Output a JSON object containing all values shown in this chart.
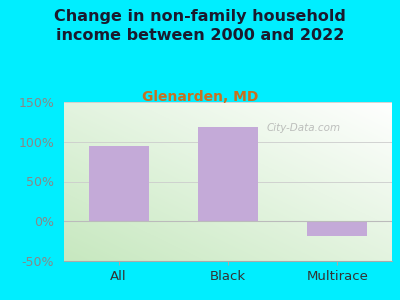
{
  "title": "Change in non-family household\nincome between 2000 and 2022",
  "subtitle": "Glenarden, MD",
  "categories": [
    "All",
    "Black",
    "Multirace"
  ],
  "values": [
    95,
    118,
    -18
  ],
  "bar_color": "#c4aad8",
  "title_color": "#1a1a2e",
  "subtitle_color": "#c87020",
  "title_fontsize": 11.5,
  "subtitle_fontsize": 10,
  "tick_color": "#888888",
  "xlabel_color": "#333333",
  "bg_outer": "#00eeff",
  "plot_bg_topleft": "#d8f0d8",
  "plot_bg_bottomleft": "#c0e8c0",
  "plot_bg_topright": "#f5faf5",
  "plot_bg_bottomright": "#e8f5e8",
  "ylim": [
    -50,
    150
  ],
  "yticks": [
    -50,
    0,
    50,
    100,
    150
  ],
  "ytick_labels": [
    "-50%",
    "0%",
    "50%",
    "100%",
    "150%"
  ],
  "watermark": "City-Data.com"
}
